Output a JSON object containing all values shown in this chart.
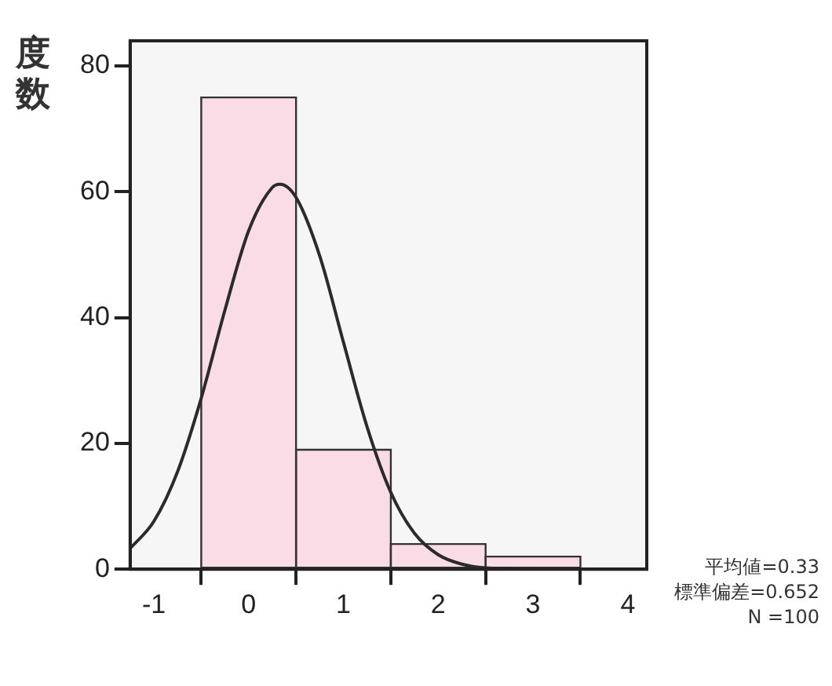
{
  "chart_data": {
    "type": "histogram",
    "ylabel": "度数",
    "bins": [
      -0.5,
      0.5,
      1.5,
      2.5,
      3.5
    ],
    "values": [
      75,
      19,
      4,
      2
    ],
    "color": "#f9dce6",
    "series": [
      {
        "type": "line",
        "color": "#2b2b2b",
        "x": [
          -1.25,
          -1.0,
          -0.75,
          -0.5,
          -0.25,
          0,
          0.25,
          0.33,
          0.5,
          0.75,
          1.0,
          1.25,
          1.5,
          1.75,
          2.0,
          2.25,
          2.5,
          2.75,
          3.0
        ],
        "values": [
          3.3,
          7.6,
          15.5,
          27.2,
          41.2,
          53.8,
          60.7,
          61.2,
          59.1,
          49.8,
          36.1,
          22.6,
          12.2,
          5.7,
          2.3,
          0.8,
          0.2,
          0.1,
          0
        ]
      }
    ],
    "xlim": [
      -1.25,
      4.2
    ],
    "xticks": [
      -1,
      0,
      1,
      2,
      3,
      4
    ],
    "ylim": [
      0,
      84
    ],
    "yticks": [
      0,
      20,
      40,
      60,
      80
    ],
    "grid": false,
    "legend": false,
    "marker": "none",
    "line_style": "solid",
    "annotations": [
      "平均値=0.33",
      "標準偏差=0.652",
      "N =100"
    ]
  }
}
